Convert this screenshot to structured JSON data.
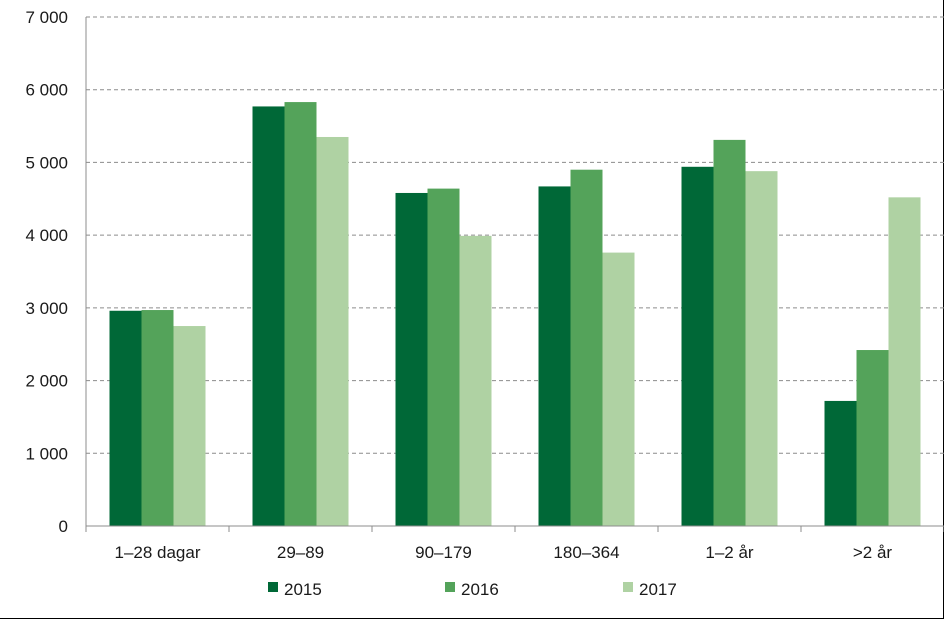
{
  "chart_data": {
    "type": "bar",
    "title": "",
    "xlabel": "",
    "ylabel": "",
    "categories": [
      "1–28 dagar",
      "29–89",
      "90–179",
      "180–364",
      "1–2 år",
      ">2 år"
    ],
    "series": [
      {
        "name": "2015",
        "color": "#006837",
        "values": [
          2960,
          5770,
          4580,
          4670,
          4940,
          1720
        ]
      },
      {
        "name": "2016",
        "color": "#54a35a",
        "values": [
          2970,
          5830,
          4640,
          4900,
          5310,
          2420
        ]
      },
      {
        "name": "2017",
        "color": "#afd2a3",
        "values": [
          2750,
          5350,
          3990,
          3760,
          4880,
          4520
        ]
      }
    ],
    "ylim": [
      0,
      7000
    ],
    "yticks": [
      0,
      1000,
      2000,
      3000,
      4000,
      5000,
      6000,
      7000
    ],
    "ytick_labels": [
      "0",
      "1 000",
      "2 000",
      "3 000",
      "4 000",
      "5 000",
      "6 000",
      "7 000"
    ],
    "grid": "horizontal dashed",
    "legend_position": "bottom"
  }
}
